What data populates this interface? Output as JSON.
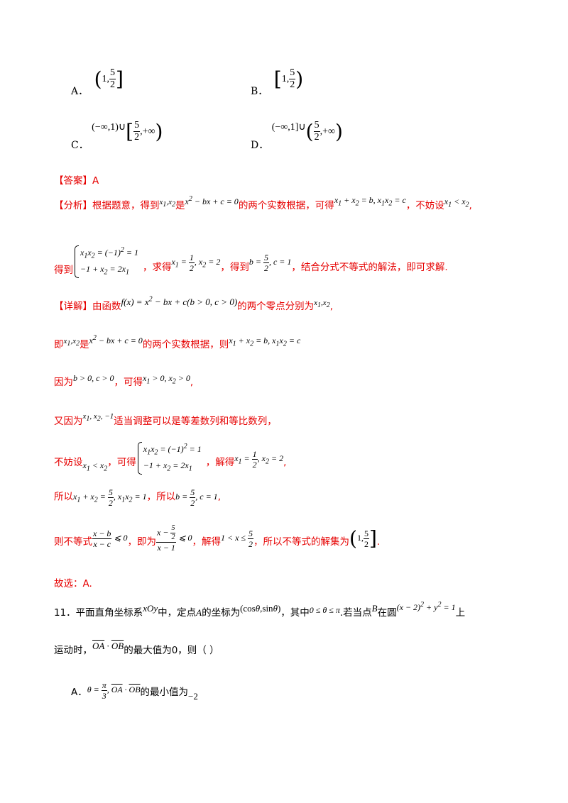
{
  "options": {
    "A": {
      "label": "A．"
    },
    "B": {
      "label": "B．"
    },
    "C": {
      "label": "C．",
      "left": "(−∞,1)∪"
    },
    "D": {
      "label": "D．",
      "left": "(−∞,1]∪"
    }
  },
  "answer": {
    "tag": "【答案】",
    "value": "A"
  },
  "analysis": {
    "tag": "【分析】",
    "p1": "根据题意，得到",
    "p2": "是",
    "p3": "的两个实数根据，可得",
    "p4": "，不妨设",
    "p5": "得到",
    "p6": "，求得",
    "p7": "，得到",
    "p8": "，结合分式不等式的解法，即可求解."
  },
  "detail": {
    "tag": "【详解】",
    "l1a": "由函数",
    "l1b": "的两个零点分别为",
    "l2a": "即",
    "l2b": "是",
    "l2c": "的两个实数根据，则",
    "l3a": "因为",
    "l3b": "，可得",
    "l4a": "又因为",
    "l4b": "适当调整可以是等差数列和等比数列，",
    "l5a": "不妨设",
    "l5b": "，可得",
    "l5c": "，解得",
    "l6a": "所以",
    "l6b": "，所以",
    "l7a": "则不等式",
    "l7b": "，即为",
    "l7c": "，解得",
    "l7d": "，所以不等式的解集为"
  },
  "choice": "故选：A.",
  "q11": {
    "a": "11．平面直角坐标系",
    "b": "中，定点",
    "c": "的坐标为",
    "d": "，其中",
    "e": ".若当点",
    "f": "在圆",
    "g": "上",
    "h": "运动时，",
    "i": "的最大值为0，则（    ）",
    "optA_label": "A．",
    "optA_text": "的最小值为"
  }
}
